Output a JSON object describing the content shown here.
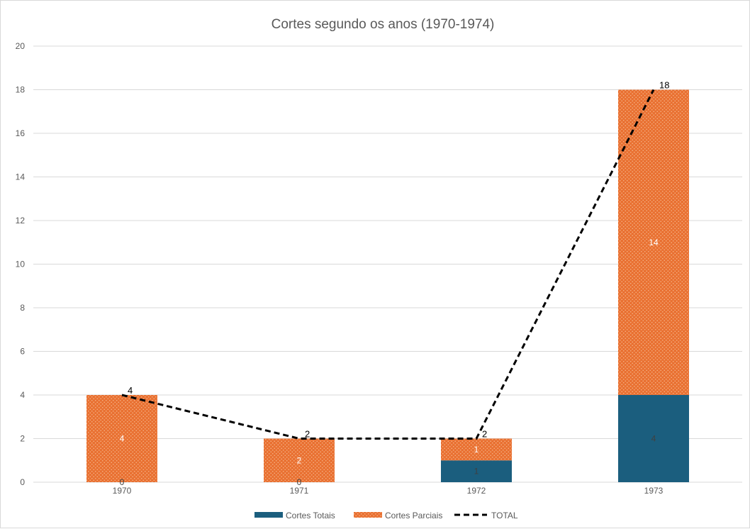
{
  "chart_data": {
    "type": "bar",
    "stacked": true,
    "title": "Cortes segundo os anos (1970-1974)",
    "categories": [
      "1970",
      "1971",
      "1972",
      "1973"
    ],
    "ylim": [
      0,
      20
    ],
    "yticks": [
      0,
      2,
      4,
      6,
      8,
      10,
      12,
      14,
      16,
      18,
      20
    ],
    "grid": true,
    "legend_position": "bottom",
    "series": [
      {
        "name": "Cortes Totais",
        "type": "bar",
        "values": [
          0,
          0,
          1,
          4
        ],
        "color": "#1b5e7e"
      },
      {
        "name": "Cortes Parciais",
        "type": "bar",
        "values": [
          4,
          2,
          1,
          14
        ],
        "color": "#e97132",
        "pattern": "dotted"
      },
      {
        "name": "TOTAL",
        "type": "line",
        "values": [
          4,
          2,
          2,
          18
        ],
        "color": "#000000",
        "style": "dashed"
      }
    ]
  }
}
